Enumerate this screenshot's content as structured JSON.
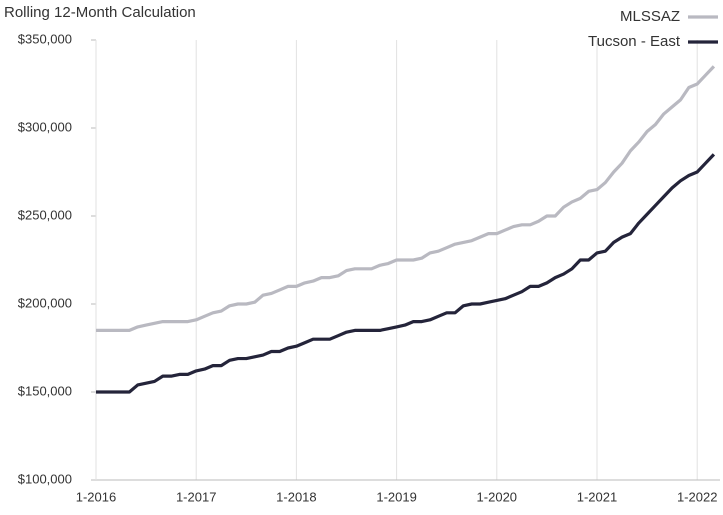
{
  "chart_data": {
    "type": "line",
    "title": "Rolling 12-Month Calculation",
    "categories": [
      "1-2016",
      null,
      null,
      null,
      null,
      null,
      null,
      null,
      null,
      null,
      null,
      null,
      "1-2017",
      null,
      null,
      null,
      null,
      null,
      null,
      null,
      null,
      null,
      null,
      null,
      "1-2018",
      null,
      null,
      null,
      null,
      null,
      null,
      null,
      null,
      null,
      null,
      null,
      "1-2019",
      null,
      null,
      null,
      null,
      null,
      null,
      null,
      null,
      null,
      null,
      null,
      "1-2020",
      null,
      null,
      null,
      null,
      null,
      null,
      null,
      null,
      null,
      null,
      null,
      "1-2021",
      null,
      null,
      null,
      null,
      null,
      null,
      null,
      null,
      null,
      null,
      null,
      "1-2022",
      null,
      null
    ],
    "series": [
      {
        "name": "MLSSAZ",
        "color": "#b9b9c1",
        "values": [
          185000,
          185000,
          185000,
          185000,
          185000,
          187000,
          188000,
          189000,
          190000,
          190000,
          190000,
          190000,
          191000,
          193000,
          195000,
          196000,
          199000,
          200000,
          200000,
          201000,
          205000,
          206000,
          208000,
          210000,
          210000,
          212000,
          213000,
          215000,
          215000,
          216000,
          219000,
          220000,
          220000,
          220000,
          222000,
          223000,
          225000,
          225000,
          225000,
          226000,
          229000,
          230000,
          232000,
          234000,
          235000,
          236000,
          238000,
          240000,
          240000,
          242000,
          244000,
          245000,
          245000,
          247000,
          250000,
          250000,
          255000,
          258000,
          260000,
          264000,
          265000,
          269000,
          275000,
          280000,
          287000,
          292000,
          298000,
          302000,
          308000,
          312000,
          316000,
          323000,
          325000,
          330000,
          335000
        ]
      },
      {
        "name": "Tucson - East",
        "color": "#24243a",
        "values": [
          150000,
          150000,
          150000,
          150000,
          150000,
          154000,
          155000,
          156000,
          159000,
          159000,
          160000,
          160000,
          162000,
          163000,
          165000,
          165000,
          168000,
          169000,
          169000,
          170000,
          171000,
          173000,
          173000,
          175000,
          176000,
          178000,
          180000,
          180000,
          180000,
          182000,
          184000,
          185000,
          185000,
          185000,
          185000,
          186000,
          187000,
          188000,
          190000,
          190000,
          191000,
          193000,
          195000,
          195000,
          199000,
          200000,
          200000,
          201000,
          202000,
          203000,
          205000,
          207000,
          210000,
          210000,
          212000,
          215000,
          217000,
          220000,
          225000,
          225000,
          229000,
          230000,
          235000,
          238000,
          240000,
          246000,
          251000,
          256000,
          261000,
          266000,
          270000,
          273000,
          275000,
          280000,
          285000
        ]
      }
    ],
    "ylim": [
      100000,
      350000
    ],
    "yticks": [
      {
        "value": 100000,
        "label": "$100,000"
      },
      {
        "value": 150000,
        "label": "$150,000"
      },
      {
        "value": 200000,
        "label": "$200,000"
      },
      {
        "value": 250000,
        "label": "$250,000"
      },
      {
        "value": 300000,
        "label": "$300,000"
      },
      {
        "value": 350000,
        "label": "$350,000"
      }
    ],
    "legend": "top-right"
  }
}
